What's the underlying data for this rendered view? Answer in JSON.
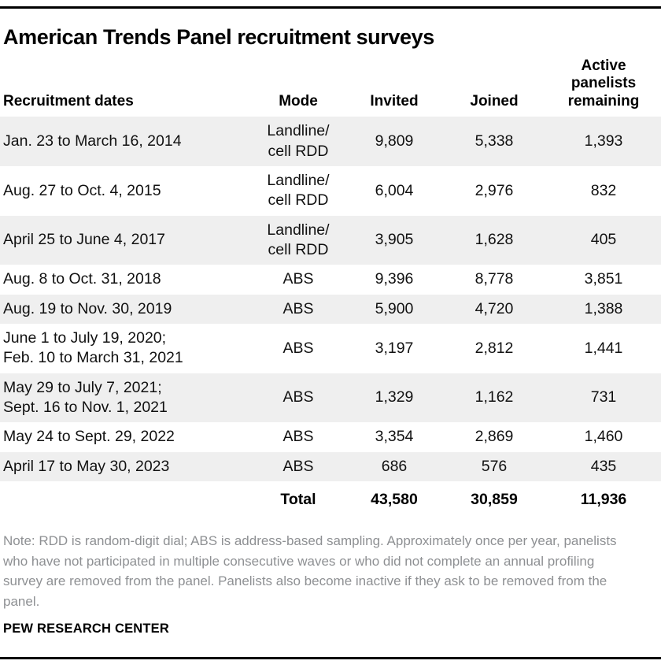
{
  "title": "American Trends Panel recruitment surveys",
  "colors": {
    "stripe": "#efefef",
    "note_text": "#8e9093",
    "rule": "#000000"
  },
  "chart_data": {
    "type": "table",
    "title": "American Trends Panel recruitment surveys",
    "columns": [
      "Recruitment dates",
      "Mode",
      "Invited",
      "Joined",
      "Active panelists remaining"
    ],
    "rows": [
      {
        "dates": [
          "Jan. 23 to March 16, 2014"
        ],
        "mode": [
          "Landline/",
          "cell RDD"
        ],
        "invited": "9,809",
        "joined": "5,338",
        "active_remaining": "1,393",
        "shaded": true
      },
      {
        "dates": [
          "Aug. 27 to Oct. 4, 2015"
        ],
        "mode": [
          "Landline/",
          "cell RDD"
        ],
        "invited": "6,004",
        "joined": "2,976",
        "active_remaining": "832",
        "shaded": false
      },
      {
        "dates": [
          "April 25 to June 4, 2017"
        ],
        "mode": [
          "Landline/",
          "cell RDD"
        ],
        "invited": "3,905",
        "joined": "1,628",
        "active_remaining": "405",
        "shaded": true
      },
      {
        "dates": [
          "Aug. 8 to Oct. 31, 2018"
        ],
        "mode": [
          "ABS"
        ],
        "invited": "9,396",
        "joined": "8,778",
        "active_remaining": "3,851",
        "shaded": false
      },
      {
        "dates": [
          "Aug. 19 to Nov. 30, 2019"
        ],
        "mode": [
          "ABS"
        ],
        "invited": "5,900",
        "joined": "4,720",
        "active_remaining": "1,388",
        "shaded": true
      },
      {
        "dates": [
          "June 1 to July 19, 2020;",
          "Feb. 10 to March 31, 2021"
        ],
        "mode": [
          "ABS"
        ],
        "invited": "3,197",
        "joined": "2,812",
        "active_remaining": "1,441",
        "shaded": false
      },
      {
        "dates": [
          "May 29 to July 7, 2021;",
          "Sept. 16 to Nov. 1, 2021"
        ],
        "mode": [
          "ABS"
        ],
        "invited": "1,329",
        "joined": "1,162",
        "active_remaining": "731",
        "shaded": true
      },
      {
        "dates": [
          "May 24 to Sept. 29, 2022"
        ],
        "mode": [
          "ABS"
        ],
        "invited": "3,354",
        "joined": "2,869",
        "active_remaining": "1,460",
        "shaded": false
      },
      {
        "dates": [
          "April 17 to May 30, 2023"
        ],
        "mode": [
          "ABS"
        ],
        "invited": "686",
        "joined": "576",
        "active_remaining": "435",
        "shaded": true
      }
    ],
    "total": {
      "label": "Total",
      "invited": "43,580",
      "joined": "30,859",
      "active_remaining": "11,936"
    }
  },
  "note": "Note: RDD is random-digit dial; ABS is address-based sampling. Approximately once per year, panelists who have not participated in multiple consecutive waves or who did not complete an annual profiling survey are removed from the panel. Panelists also become inactive if they ask to be removed from the panel.",
  "footer": "PEW RESEARCH CENTER"
}
